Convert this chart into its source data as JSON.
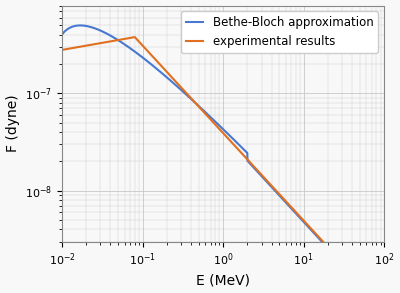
{
  "xlabel": "E (MeV)",
  "ylabel": "F (dyne)",
  "xlim": [
    0.01,
    100
  ],
  "ylim": [
    3e-09,
    8e-07
  ],
  "legend_labels": [
    "Bethe-Bloch approximation",
    "experimental results"
  ],
  "blue_color": "#4878cf",
  "orange_color": "#e07020",
  "background_color": "#f8f8f8",
  "grid_color": "#c8c8c8",
  "legend_fontsize": 8.5,
  "axis_label_fontsize": 10,
  "tick_labelsize": 8
}
